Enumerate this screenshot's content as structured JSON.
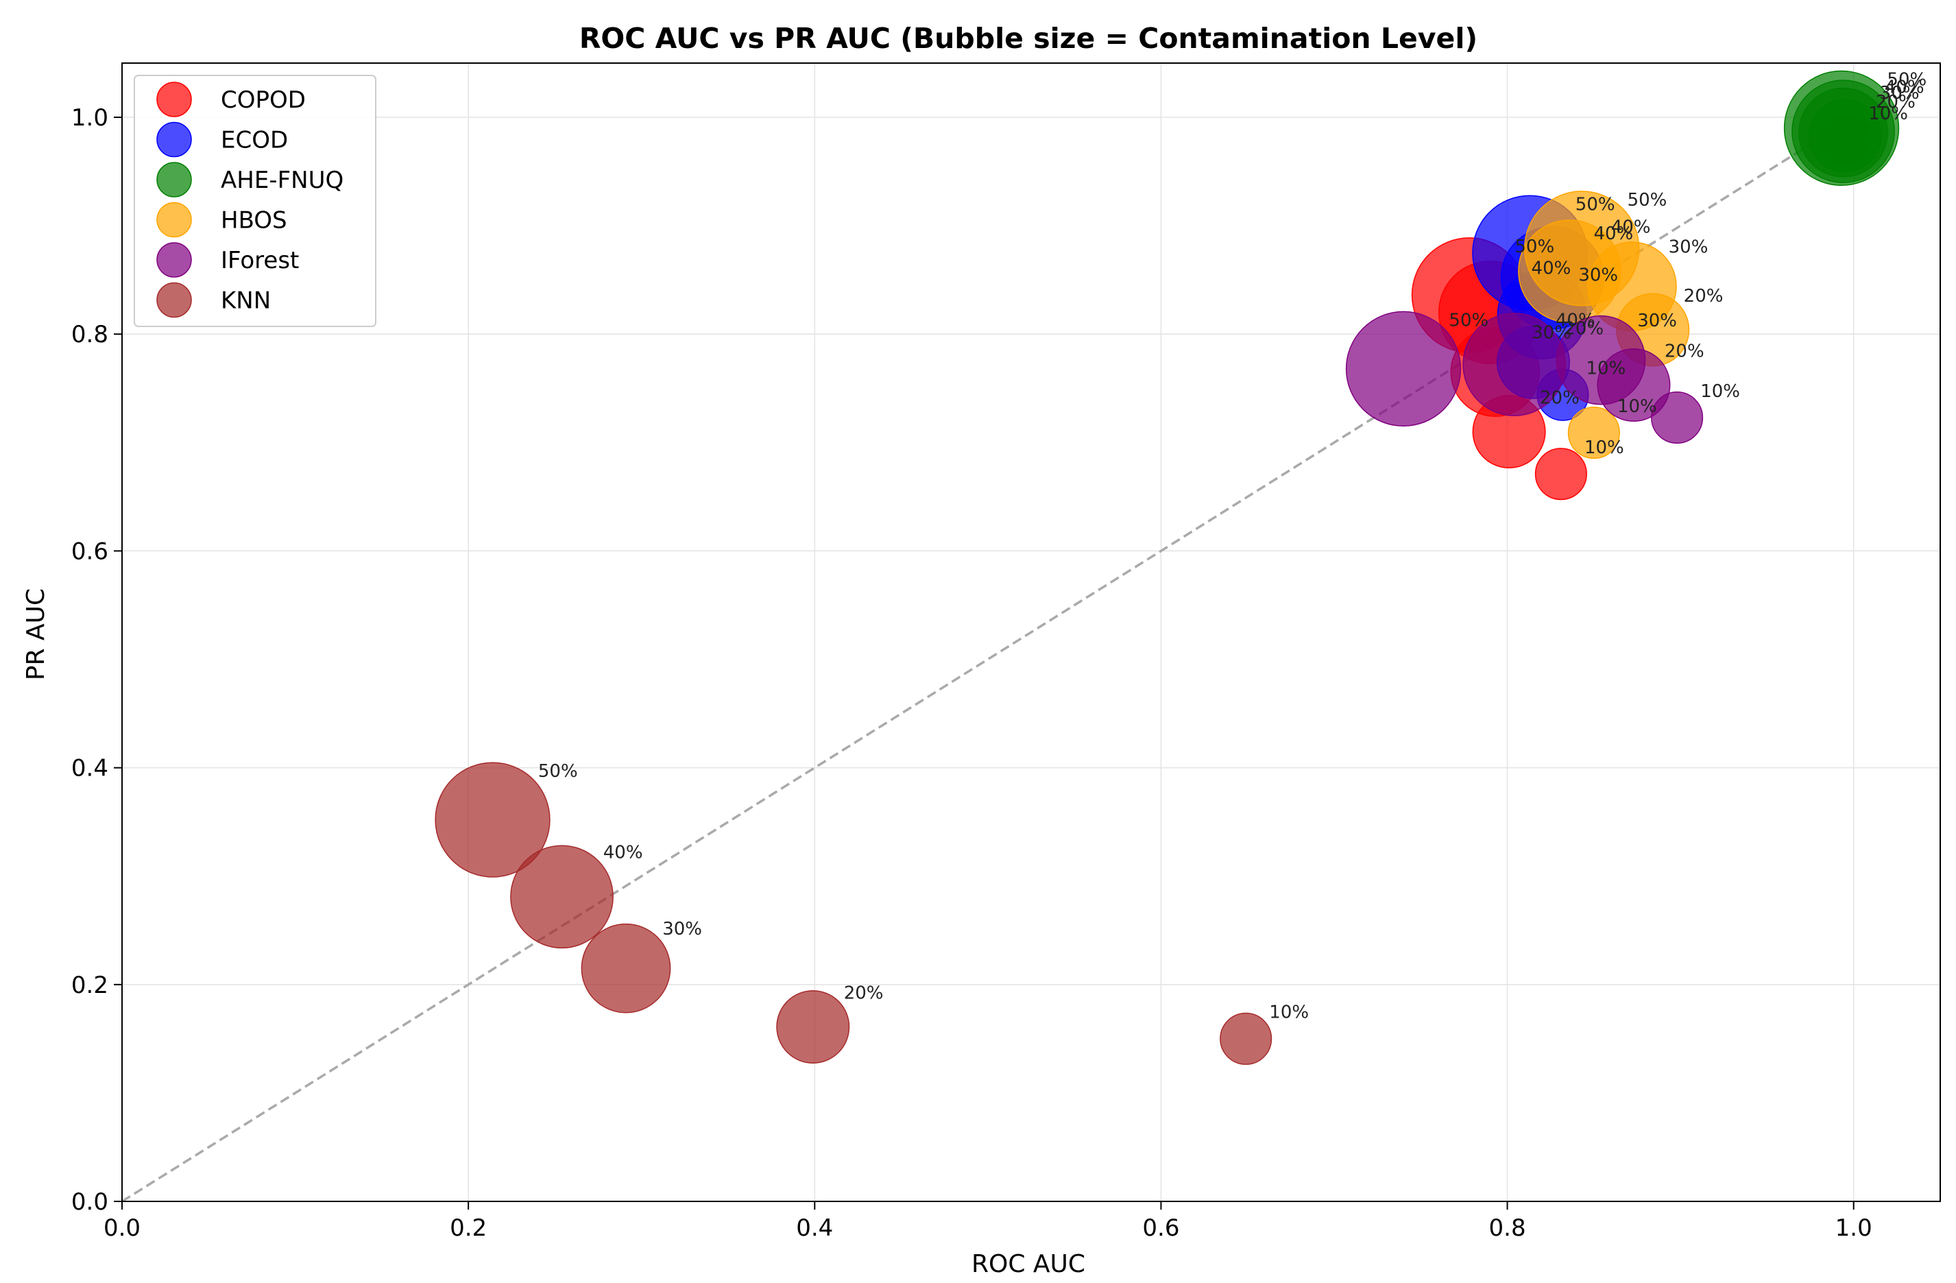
{
  "chart_data": {
    "type": "scatter",
    "title": "ROC AUC vs PR AUC (Bubble size = Contamination Level)",
    "xlabel": "ROC AUC",
    "ylabel": "PR AUC",
    "xlim": [
      0.0,
      1.05
    ],
    "ylim": [
      0.0,
      1.05
    ],
    "xticks": [
      0.0,
      0.2,
      0.4,
      0.6,
      0.8,
      1.0
    ],
    "yticks": [
      0.0,
      0.2,
      0.4,
      0.6,
      0.8,
      1.0
    ],
    "xtick_labels": [
      "0.0",
      "0.2",
      "0.4",
      "0.6",
      "0.8",
      "1.0"
    ],
    "ytick_labels": [
      "0.0",
      "0.2",
      "0.4",
      "0.6",
      "0.8",
      "1.0"
    ],
    "grid": true,
    "legend_position": "top-left",
    "diagonal_reference": {
      "from": [
        0.0,
        0.0
      ],
      "to": [
        1.0,
        1.0
      ],
      "style": "dashed",
      "color": "#aaaaaa"
    },
    "colors": {
      "COPOD": "#ff0000",
      "ECOD": "#0000ff",
      "AHE-FNUQ": "#008000",
      "HBOS": "#ffa500",
      "IForest": "#800080",
      "KNN": "#a52a2a"
    },
    "series": [
      {
        "name": "COPOD",
        "points": [
          {
            "contamination": 10,
            "label": "10%",
            "roc_auc": 0.831,
            "pr_auc": 0.671
          },
          {
            "contamination": 20,
            "label": "20%",
            "roc_auc": 0.801,
            "pr_auc": 0.71
          },
          {
            "contamination": 30,
            "label": "30%",
            "roc_auc": 0.793,
            "pr_auc": 0.765
          },
          {
            "contamination": 40,
            "label": "40%",
            "roc_auc": 0.79,
            "pr_auc": 0.82
          },
          {
            "contamination": 50,
            "label": "50%",
            "roc_auc": 0.778,
            "pr_auc": 0.836
          }
        ]
      },
      {
        "name": "ECOD",
        "points": [
          {
            "contamination": 10,
            "label": "10%",
            "roc_auc": 0.832,
            "pr_auc": 0.744
          },
          {
            "contamination": 20,
            "label": "20%",
            "roc_auc": 0.815,
            "pr_auc": 0.774
          },
          {
            "contamination": 30,
            "label": "30%",
            "roc_auc": 0.82,
            "pr_auc": 0.818
          },
          {
            "contamination": 40,
            "label": "40%",
            "roc_auc": 0.826,
            "pr_auc": 0.852
          },
          {
            "contamination": 50,
            "label": "50%",
            "roc_auc": 0.813,
            "pr_auc": 0.875
          }
        ]
      },
      {
        "name": "AHE-FNUQ",
        "points": [
          {
            "contamination": 10,
            "label": "10%",
            "roc_auc": 0.995,
            "pr_auc": 0.979
          },
          {
            "contamination": 20,
            "label": "20%",
            "roc_auc": 0.995,
            "pr_auc": 0.983
          },
          {
            "contamination": 30,
            "label": "30%",
            "roc_auc": 0.994,
            "pr_auc": 0.986
          },
          {
            "contamination": 40,
            "label": "40%",
            "roc_auc": 0.994,
            "pr_auc": 0.987
          },
          {
            "contamination": 50,
            "label": "50%",
            "roc_auc": 0.993,
            "pr_auc": 0.99
          }
        ]
      },
      {
        "name": "HBOS",
        "points": [
          {
            "contamination": 10,
            "label": "10%",
            "roc_auc": 0.85,
            "pr_auc": 0.709
          },
          {
            "contamination": 20,
            "label": "20%",
            "roc_auc": 0.884,
            "pr_auc": 0.804
          },
          {
            "contamination": 30,
            "label": "30%",
            "roc_auc": 0.872,
            "pr_auc": 0.844
          },
          {
            "contamination": 40,
            "label": "40%",
            "roc_auc": 0.836,
            "pr_auc": 0.858
          },
          {
            "contamination": 50,
            "label": "50%",
            "roc_auc": 0.843,
            "pr_auc": 0.879
          }
        ]
      },
      {
        "name": "IForest",
        "points": [
          {
            "contamination": 10,
            "label": "10%",
            "roc_auc": 0.898,
            "pr_auc": 0.723
          },
          {
            "contamination": 20,
            "label": "20%",
            "roc_auc": 0.873,
            "pr_auc": 0.753
          },
          {
            "contamination": 30,
            "label": "30%",
            "roc_auc": 0.854,
            "pr_auc": 0.776
          },
          {
            "contamination": 40,
            "label": "40%",
            "roc_auc": 0.804,
            "pr_auc": 0.772
          },
          {
            "contamination": 50,
            "label": "50%",
            "roc_auc": 0.74,
            "pr_auc": 0.768
          }
        ]
      },
      {
        "name": "KNN",
        "points": [
          {
            "contamination": 10,
            "label": "10%",
            "roc_auc": 0.649,
            "pr_auc": 0.15
          },
          {
            "contamination": 20,
            "label": "20%",
            "roc_auc": 0.399,
            "pr_auc": 0.161
          },
          {
            "contamination": 30,
            "label": "30%",
            "roc_auc": 0.291,
            "pr_auc": 0.215
          },
          {
            "contamination": 40,
            "label": "40%",
            "roc_auc": 0.254,
            "pr_auc": 0.281
          },
          {
            "contamination": 50,
            "label": "50%",
            "roc_auc": 0.214,
            "pr_auc": 0.352
          }
        ]
      }
    ]
  }
}
